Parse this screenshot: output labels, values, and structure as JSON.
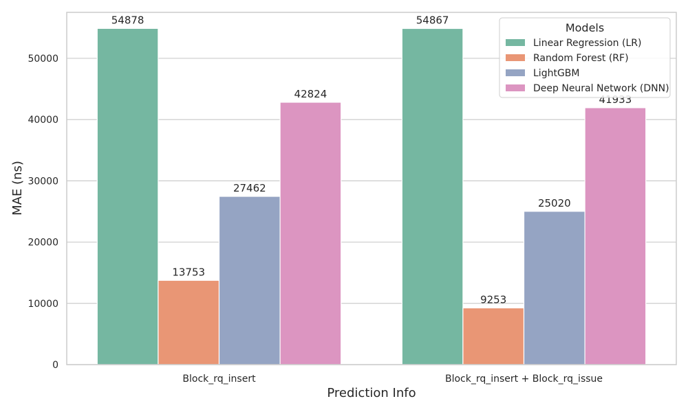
{
  "chart_data": {
    "type": "bar",
    "title": "",
    "xlabel": "Prediction Info",
    "ylabel": "MAE (ns)",
    "categories": [
      "Block_rq_insert",
      "Block_rq_insert + Block_rq_issue"
    ],
    "series": [
      {
        "name": "Linear Regression (LR)",
        "values": [
          54878,
          54867
        ],
        "color": "#75b7a1"
      },
      {
        "name": "Random Forest (RF)",
        "values": [
          13753,
          9253
        ],
        "color": "#e99675"
      },
      {
        "name": "LightGBM",
        "values": [
          27462,
          25020
        ],
        "color": "#95a4c3"
      },
      {
        "name": "Deep Neural Network (DNN)",
        "values": [
          42824,
          41933
        ],
        "color": "#dc95c1"
      }
    ],
    "yticks": [
      0,
      10000,
      20000,
      30000,
      40000,
      50000
    ],
    "ylim": [
      0,
      57500
    ],
    "grid": true,
    "legend": {
      "title": "Models",
      "placement": "top-right"
    }
  }
}
